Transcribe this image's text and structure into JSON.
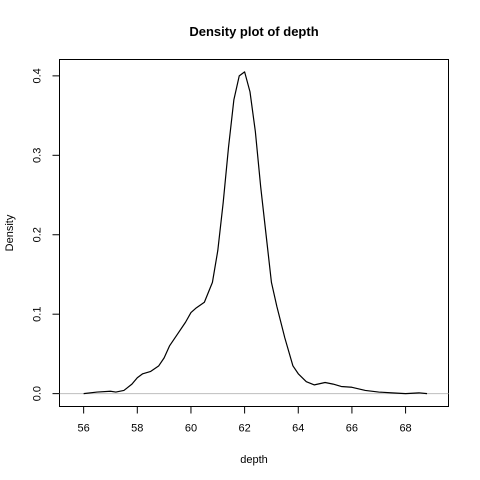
{
  "chart_data": {
    "type": "line",
    "title": "Density plot of  depth",
    "xlabel": "depth",
    "ylabel": "Density",
    "xlim": [
      55.1,
      69.6
    ],
    "ylim": [
      -0.0162,
      0.4206
    ],
    "xticks": [
      56,
      58,
      60,
      62,
      64,
      66,
      68
    ],
    "yticks": [
      0.0,
      0.1,
      0.2,
      0.3,
      0.4
    ],
    "grid": false,
    "legend": "none",
    "baseline": 0,
    "baseline_color": "#bebebe",
    "line_color": "#000000",
    "series": [
      {
        "x": [
          56.0,
          56.5,
          57.0,
          57.2,
          57.5,
          57.8,
          58.0,
          58.2,
          58.5,
          58.8,
          59.0,
          59.2,
          59.5,
          59.8,
          60.0,
          60.2,
          60.5,
          60.8,
          61.0,
          61.2,
          61.4,
          61.6,
          61.8,
          62.0,
          62.2,
          62.4,
          62.6,
          62.8,
          63.0,
          63.2,
          63.5,
          63.8,
          64.0,
          64.3,
          64.6,
          65.0,
          65.3,
          65.6,
          66.0,
          66.5,
          67.0,
          67.5,
          68.0,
          68.5,
          68.8
        ],
        "y": [
          0.0,
          0.002,
          0.003,
          0.002,
          0.004,
          0.012,
          0.02,
          0.025,
          0.028,
          0.035,
          0.045,
          0.06,
          0.075,
          0.09,
          0.102,
          0.108,
          0.115,
          0.14,
          0.18,
          0.24,
          0.31,
          0.37,
          0.4,
          0.405,
          0.38,
          0.33,
          0.26,
          0.2,
          0.14,
          0.11,
          0.07,
          0.035,
          0.025,
          0.015,
          0.011,
          0.014,
          0.012,
          0.009,
          0.008,
          0.004,
          0.002,
          0.001,
          0.0,
          0.001,
          0.0
        ]
      }
    ]
  }
}
